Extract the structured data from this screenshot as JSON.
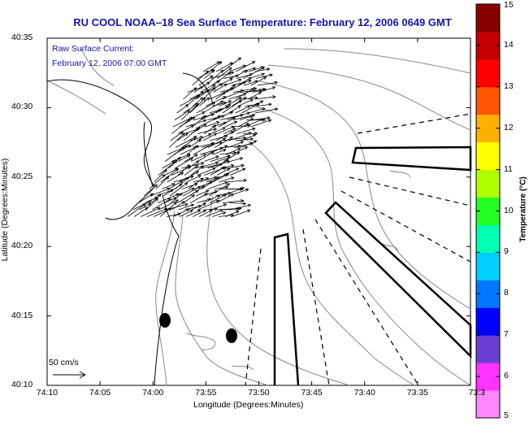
{
  "header": {
    "title": "RU COOL  NOAA–18  Sea Surface Temperature:  February 12, 2006 0649 GMT"
  },
  "annotations": {
    "current_label": "Raw Surface Current:",
    "current_time": "February 12, 2006 07:00 GMT",
    "scale_label": "50 cm/s"
  },
  "axes": {
    "xlabel": "Longitude (Degrees:Minutes)",
    "ylabel": "Latitude (Degrees:Minutes)",
    "x_ticks": [
      "74:10",
      "74:05",
      "74:00",
      "73:55",
      "73:50",
      "73:45",
      "73:40",
      "73:35",
      "73:3"
    ],
    "y_ticks": [
      "40:35",
      "40:30",
      "40:25",
      "40:20",
      "40:15",
      "40:10"
    ]
  },
  "colorbar": {
    "label": "Temperature (°C)",
    "min": 5,
    "max": 15,
    "ticks": [
      "15",
      "14",
      "13",
      "12",
      "11",
      "10",
      "9",
      "8",
      "7",
      "6",
      "5"
    ],
    "colors": [
      "#ff88ff",
      "#ff33ff",
      "#6a3fd6",
      "#0000ff",
      "#0077ff",
      "#00d0ff",
      "#00ffb0",
      "#22ff22",
      "#b0ff00",
      "#ffff00",
      "#ffb000",
      "#ff5500",
      "#ff0000",
      "#c40000",
      "#880000"
    ]
  },
  "map": {
    "land_color": "#ffffff",
    "contour_color": "#888888",
    "coast_color": "#000000",
    "vector_color": "#000000"
  }
}
